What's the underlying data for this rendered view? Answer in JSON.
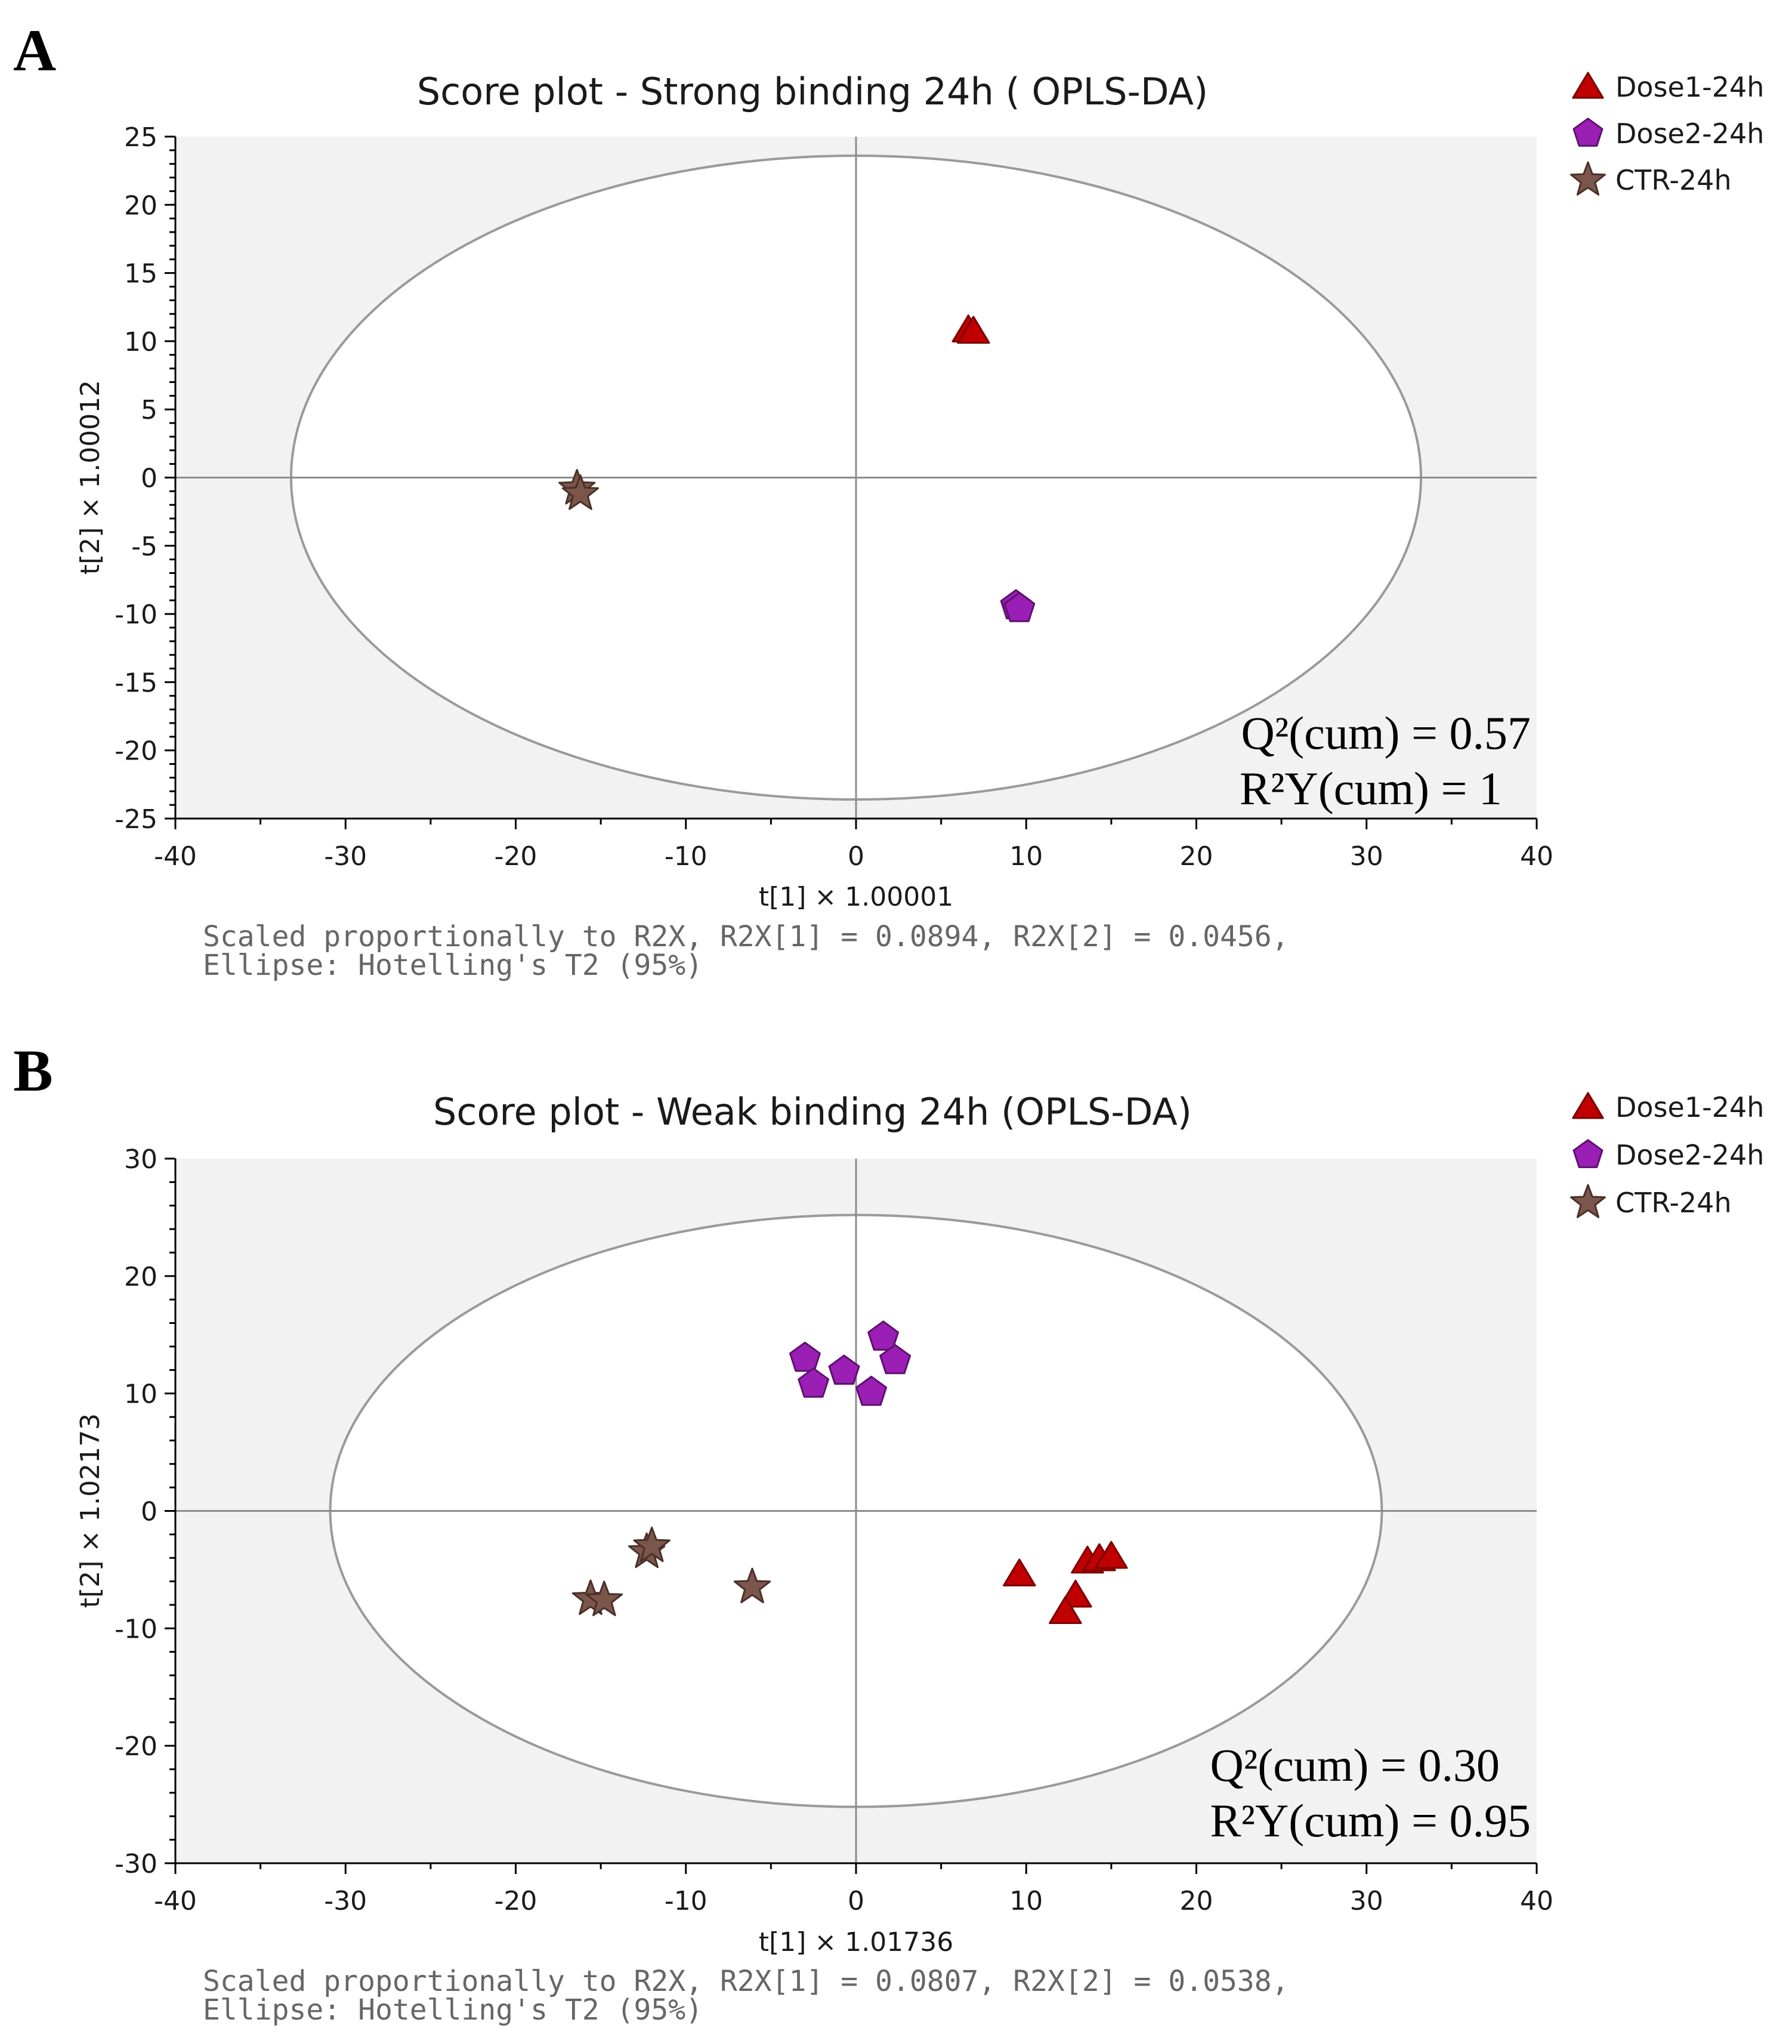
{
  "colors": {
    "plot_background": "#f2f2f2",
    "ellipse_fill": "#ffffff",
    "ellipse_stroke": "#9a9a9a",
    "crosshair": "#8c8c8c",
    "axis": "#000000",
    "footnote": "#666666"
  },
  "legend": [
    {
      "label": "Dose1-24h",
      "marker": "triangle",
      "color": "#c00000",
      "stroke": "#7a0000"
    },
    {
      "label": "Dose2-24h",
      "marker": "pentagon",
      "color": "#9b1fb5",
      "stroke": "#5e1070"
    },
    {
      "label": "CTR-24h",
      "marker": "star",
      "color": "#7b564a",
      "stroke": "#4a3029"
    }
  ],
  "chart_data": [
    {
      "panel": "A",
      "type": "scatter",
      "title": "Score plot - Strong binding 24h ( OPLS-DA)",
      "xlabel": "t[1] × 1.00001",
      "ylabel": "t[2] × 1.00012",
      "xlim": [
        -40,
        40
      ],
      "ylim": [
        -25,
        25
      ],
      "x_ticks": [
        -40,
        -30,
        -20,
        -10,
        0,
        10,
        20,
        30,
        40
      ],
      "y_ticks": [
        25,
        20,
        15,
        10,
        5,
        0,
        -5,
        -10,
        -15,
        -20,
        -25
      ],
      "ellipse": {
        "rx": 33.2,
        "ry": 23.6
      },
      "stats": [
        "Q²(cum) = 0.57",
        "R²Y(cum) = 1"
      ],
      "footnote": [
        "Scaled proportionally to R2X, R2X[1] = 0.0894, R2X[2] = 0.0456,",
        "Ellipse: Hotelling's T2 (95%)"
      ],
      "series": [
        {
          "name": "Dose1-24h",
          "points": [
            [
              6.6,
              10.8
            ],
            [
              6.9,
              10.7
            ]
          ]
        },
        {
          "name": "Dose2-24h",
          "points": [
            [
              9.4,
              -9.4
            ],
            [
              9.6,
              -9.6
            ]
          ]
        },
        {
          "name": "CTR-24h",
          "points": [
            [
              -16.4,
              -0.8
            ],
            [
              -16.2,
              -1.2
            ]
          ]
        }
      ]
    },
    {
      "panel": "B",
      "type": "scatter",
      "title": "Score plot - Weak binding 24h (OPLS-DA)",
      "xlabel": "t[1] × 1.01736",
      "ylabel": "t[2] × 1.02173",
      "xlim": [
        -40,
        40
      ],
      "ylim": [
        -30,
        30
      ],
      "x_ticks": [
        -40,
        -30,
        -20,
        -10,
        0,
        10,
        20,
        30,
        40
      ],
      "y_ticks": [
        30,
        20,
        10,
        0,
        -10,
        -20,
        -30
      ],
      "ellipse": {
        "rx": 30.9,
        "ry": 25.2
      },
      "stats": [
        "Q²(cum) = 0.30",
        "R²Y(cum) = 0.95"
      ],
      "footnote": [
        "Scaled proportionally to R2X, R2X[1] = 0.0807, R2X[2] = 0.0538,",
        "Ellipse: Hotelling's T2 (95%)"
      ],
      "series": [
        {
          "name": "Dose1-24h",
          "points": [
            [
              9.6,
              -5.4
            ],
            [
              12.9,
              -7.2
            ],
            [
              12.3,
              -8.6
            ],
            [
              13.6,
              -4.3
            ],
            [
              14.3,
              -4.1
            ],
            [
              15.0,
              -3.9
            ]
          ]
        },
        {
          "name": "Dose2-24h",
          "points": [
            [
              -3.0,
              13.0
            ],
            [
              -2.5,
              10.8
            ],
            [
              -0.7,
              11.9
            ],
            [
              1.6,
              14.8
            ],
            [
              2.3,
              12.8
            ],
            [
              0.9,
              10.1
            ]
          ]
        },
        {
          "name": "CTR-24h",
          "points": [
            [
              -15.6,
              -7.5
            ],
            [
              -14.8,
              -7.6
            ],
            [
              -12.3,
              -3.5
            ],
            [
              -12.0,
              -3.0
            ],
            [
              -6.1,
              -6.5
            ]
          ]
        }
      ]
    }
  ]
}
